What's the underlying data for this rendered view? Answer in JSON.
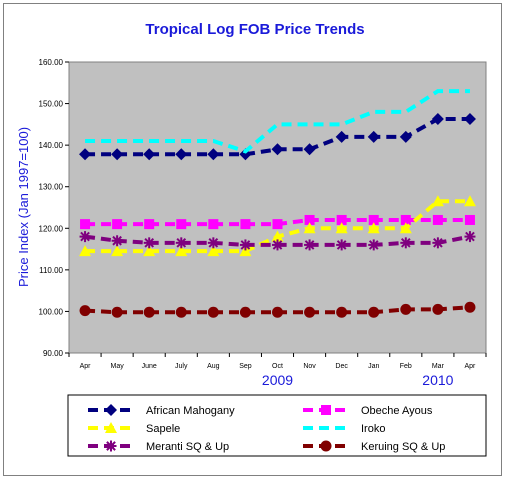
{
  "chart_data": {
    "type": "line",
    "title": "Tropical Log FOB Price Trends",
    "xlabel": "",
    "ylabel": "Price Index (Jan 1997=100)",
    "categories": [
      "Apr",
      "May",
      "June",
      "July",
      "Aug",
      "Sep",
      "Oct",
      "Nov",
      "Dec",
      "Jan",
      "Feb",
      "Mar",
      "Apr"
    ],
    "year_labels": [
      {
        "text": "2009",
        "category": "Oct"
      },
      {
        "text": "2010",
        "category": "Mar"
      }
    ],
    "ylim": [
      90,
      160
    ],
    "yticks": [
      "90.00",
      "100.00",
      "110.00",
      "120.00",
      "130.00",
      "140.00",
      "150.00",
      "160.00"
    ],
    "ytick_values": [
      90,
      100,
      110,
      120,
      130,
      140,
      150,
      160
    ],
    "grid": false,
    "legend_position": "bottom",
    "plot_background": "#c0c0c0",
    "series": [
      {
        "name": "African Mahogany",
        "color": "#00007f",
        "marker": "diamond",
        "values": [
          137.8,
          137.8,
          137.8,
          137.8,
          137.8,
          137.8,
          139.0,
          139.0,
          142.0,
          142.0,
          142.0,
          146.3,
          146.3
        ]
      },
      {
        "name": "Obeche Ayous",
        "color": "#ff00ff",
        "marker": "square",
        "values": [
          121.0,
          121.0,
          121.0,
          121.0,
          121.0,
          121.0,
          121.0,
          122.0,
          122.0,
          122.0,
          122.0,
          122.0,
          122.0
        ]
      },
      {
        "name": "Sapele",
        "color": "#ffff00",
        "marker": "triangle",
        "values": [
          114.5,
          114.5,
          114.5,
          114.5,
          114.5,
          114.5,
          118.0,
          120.0,
          120.0,
          120.0,
          120.0,
          126.5,
          126.5
        ]
      },
      {
        "name": "Iroko",
        "color": "#00ffff",
        "marker": "none",
        "values": [
          141.0,
          141.0,
          141.0,
          141.0,
          141.0,
          138.5,
          145.0,
          145.0,
          145.0,
          148.0,
          148.0,
          153.0,
          153.0
        ]
      },
      {
        "name": "Meranti SQ & Up",
        "color": "#7f007f",
        "marker": "star",
        "values": [
          118.0,
          117.0,
          116.5,
          116.5,
          116.5,
          116.0,
          116.0,
          116.0,
          116.0,
          116.0,
          116.5,
          116.5,
          118.0
        ]
      },
      {
        "name": "Keruing SQ & Up",
        "color": "#800000",
        "marker": "circle",
        "values": [
          100.2,
          99.8,
          99.8,
          99.8,
          99.8,
          99.8,
          99.8,
          99.8,
          99.8,
          99.8,
          100.5,
          100.5,
          101.0
        ]
      }
    ]
  }
}
